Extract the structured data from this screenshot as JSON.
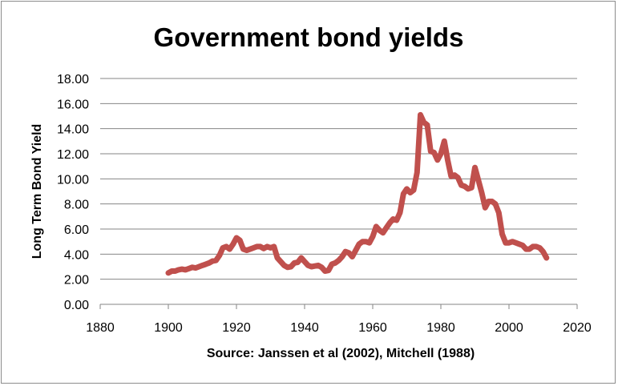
{
  "chart_data": {
    "type": "line",
    "title": "Government bond yields",
    "xlabel": "Source: Janssen et al (2002), Mitchell (1988)",
    "ylabel": "Long Term Bond Yield",
    "xlim": [
      1880,
      2020
    ],
    "ylim": [
      0,
      18
    ],
    "x_ticks": [
      1880,
      1900,
      1920,
      1940,
      1960,
      1980,
      2000,
      2020
    ],
    "y_ticks": [
      "0.00",
      "2.00",
      "4.00",
      "6.00",
      "8.00",
      "10.00",
      "12.00",
      "14.00",
      "16.00",
      "18.00"
    ],
    "grid": "horizontal",
    "line_color": "#c0504d",
    "series": [
      {
        "x": [
          1900,
          1901,
          1902,
          1903,
          1904,
          1905,
          1906,
          1907,
          1908,
          1909,
          1910,
          1911,
          1912,
          1913,
          1914,
          1915,
          1916,
          1917,
          1918,
          1919,
          1920,
          1921,
          1922,
          1923,
          1924,
          1925,
          1926,
          1927,
          1928,
          1929,
          1930,
          1931,
          1932,
          1933,
          1934,
          1935,
          1936,
          1937,
          1938,
          1939,
          1940,
          1941,
          1942,
          1943,
          1944,
          1945,
          1946,
          1947,
          1948,
          1949,
          1950,
          1951,
          1952,
          1953,
          1954,
          1955,
          1956,
          1957,
          1958,
          1959,
          1960,
          1961,
          1962,
          1963,
          1964,
          1965,
          1966,
          1967,
          1968,
          1969,
          1970,
          1971,
          1972,
          1973,
          1974,
          1975,
          1976,
          1977,
          1978,
          1979,
          1980,
          1981,
          1982,
          1983,
          1984,
          1985,
          1986,
          1987,
          1988,
          1989,
          1990,
          1991,
          1992,
          1993,
          1994,
          1995,
          1996,
          1997,
          1998,
          1999,
          2000,
          2001,
          2002,
          2003,
          2004,
          2005,
          2006,
          2007,
          2008,
          2009,
          2010,
          2011
        ],
        "values": [
          2.5,
          2.65,
          2.65,
          2.75,
          2.8,
          2.75,
          2.85,
          2.95,
          2.9,
          3.0,
          3.1,
          3.2,
          3.3,
          3.45,
          3.5,
          3.9,
          4.5,
          4.6,
          4.4,
          4.8,
          5.3,
          5.1,
          4.4,
          4.3,
          4.4,
          4.5,
          4.6,
          4.6,
          4.45,
          4.6,
          4.5,
          4.6,
          3.7,
          3.4,
          3.1,
          2.95,
          3.0,
          3.3,
          3.35,
          3.7,
          3.4,
          3.1,
          3.0,
          3.05,
          3.1,
          2.95,
          2.65,
          2.7,
          3.2,
          3.3,
          3.5,
          3.8,
          4.2,
          4.1,
          3.8,
          4.3,
          4.8,
          5.0,
          5.0,
          4.9,
          5.4,
          6.2,
          5.9,
          5.7,
          6.1,
          6.5,
          6.8,
          6.7,
          7.3,
          8.8,
          9.2,
          8.9,
          9.1,
          10.5,
          15.1,
          14.5,
          14.3,
          12.2,
          12.1,
          11.5,
          12.0,
          13.0,
          11.5,
          10.2,
          10.3,
          10.1,
          9.5,
          9.4,
          9.2,
          9.3,
          10.9,
          9.9,
          8.9,
          7.7,
          8.2,
          8.2,
          8.0,
          7.3,
          5.6,
          4.9,
          4.9,
          5.0,
          4.9,
          4.8,
          4.7,
          4.4,
          4.4,
          4.6,
          4.6,
          4.5,
          4.2,
          3.7
        ]
      }
    ]
  }
}
